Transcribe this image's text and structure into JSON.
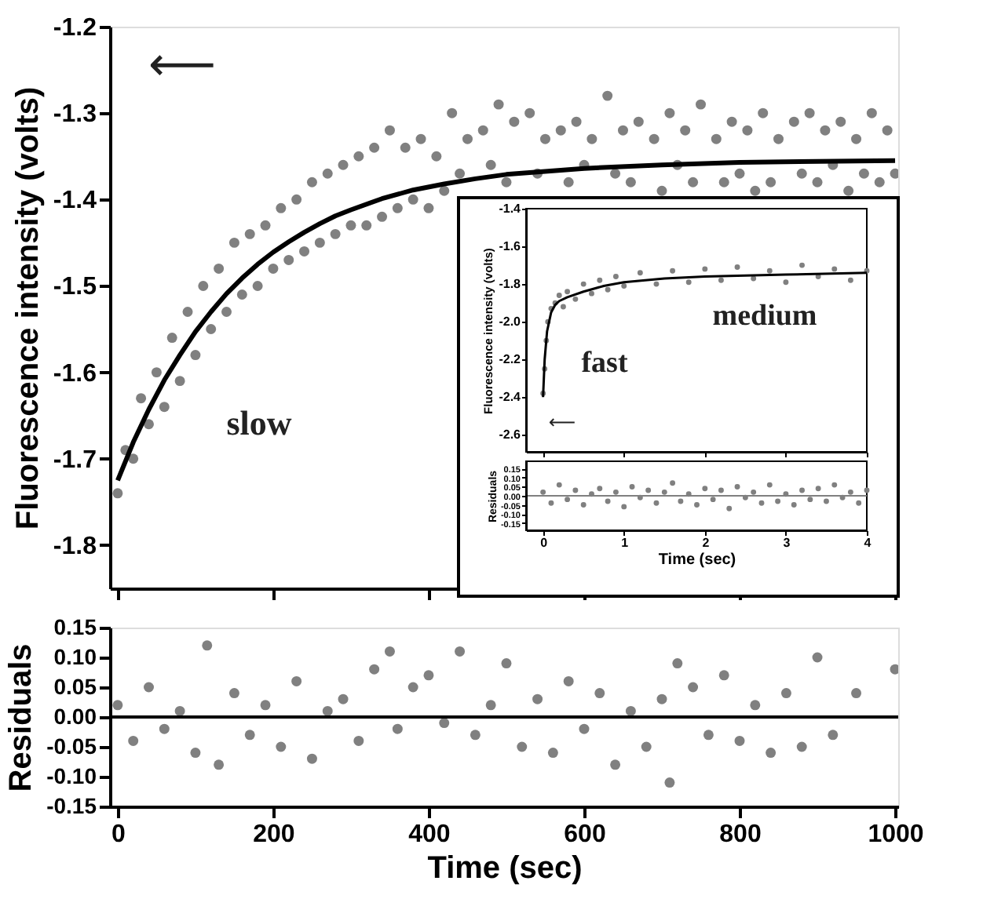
{
  "chart_data": [
    {
      "type": "scatter",
      "ylabel": "Fluorescence intensity (volts)",
      "xlim": [
        -10,
        1004
      ],
      "xticks": [
        0,
        200,
        400,
        600,
        800,
        1000
      ],
      "ylim": [
        -1.85,
        -1.2
      ],
      "yticks": [
        -1.8,
        -1.7,
        -1.6,
        -1.5,
        -1.4,
        -1.3,
        -1.2
      ],
      "tick_labels": "y",
      "series": [
        {
          "marker": "circle",
          "color": "#808080",
          "x": [
            0,
            10,
            20,
            30,
            40,
            50,
            60,
            70,
            80,
            90,
            100,
            110,
            120,
            130,
            140,
            150,
            160,
            170,
            180,
            190,
            200,
            210,
            220,
            230,
            240,
            250,
            260,
            270,
            280,
            290,
            300,
            310,
            320,
            330,
            340,
            350,
            360,
            370,
            380,
            390,
            400,
            410,
            420,
            430,
            440,
            450,
            460,
            470,
            480,
            490,
            500,
            510,
            520,
            530,
            540,
            550,
            560,
            570,
            580,
            590,
            600,
            610,
            620,
            630,
            640,
            650,
            660,
            670,
            680,
            690,
            700,
            710,
            720,
            730,
            740,
            750,
            760,
            770,
            780,
            790,
            800,
            810,
            820,
            830,
            840,
            850,
            860,
            870,
            880,
            890,
            900,
            910,
            920,
            930,
            940,
            950,
            960,
            970,
            980,
            990,
            1000
          ],
          "values": [
            -1.74,
            -1.69,
            -1.7,
            -1.63,
            -1.66,
            -1.6,
            -1.64,
            -1.56,
            -1.61,
            -1.53,
            -1.58,
            -1.5,
            -1.55,
            -1.48,
            -1.53,
            -1.45,
            -1.51,
            -1.44,
            -1.5,
            -1.43,
            -1.48,
            -1.41,
            -1.47,
            -1.4,
            -1.46,
            -1.38,
            -1.45,
            -1.37,
            -1.44,
            -1.36,
            -1.43,
            -1.35,
            -1.43,
            -1.34,
            -1.42,
            -1.32,
            -1.41,
            -1.34,
            -1.4,
            -1.33,
            -1.41,
            -1.35,
            -1.39,
            -1.3,
            -1.37,
            -1.33,
            null,
            -1.32,
            -1.36,
            -1.29,
            -1.38,
            -1.31,
            null,
            -1.3,
            -1.37,
            -1.33,
            null,
            -1.32,
            -1.38,
            -1.31,
            -1.36,
            -1.33,
            null,
            -1.28,
            -1.37,
            -1.32,
            -1.38,
            -1.31,
            null,
            -1.33,
            -1.39,
            -1.3,
            -1.36,
            -1.32,
            -1.38,
            -1.29,
            null,
            -1.33,
            -1.38,
            -1.31,
            -1.37,
            -1.32,
            -1.39,
            -1.3,
            -1.38,
            -1.33,
            null,
            -1.31,
            -1.37,
            -1.3,
            -1.38,
            -1.32,
            -1.36,
            -1.31,
            -1.39,
            -1.33,
            -1.37,
            -1.3,
            -1.38,
            -1.32,
            -1.37
          ]
        },
        {
          "type": "line",
          "marker": "none",
          "color": "#000000",
          "x": [
            0,
            20,
            40,
            60,
            80,
            100,
            120,
            140,
            160,
            180,
            200,
            220,
            240,
            260,
            280,
            300,
            340,
            380,
            420,
            460,
            500,
            600,
            700,
            800,
            900,
            1000
          ],
          "values": [
            -1.725,
            -1.681,
            -1.643,
            -1.609,
            -1.58,
            -1.553,
            -1.53,
            -1.509,
            -1.491,
            -1.475,
            -1.461,
            -1.449,
            -1.438,
            -1.428,
            -1.419,
            -1.412,
            -1.399,
            -1.389,
            -1.382,
            -1.376,
            -1.371,
            -1.364,
            -1.36,
            -1.357,
            -1.356,
            -1.355
          ]
        }
      ],
      "annotations": [
        "slow",
        "⟵"
      ]
    },
    {
      "type": "scatter",
      "xlabel": "Time (sec)",
      "ylabel": "Residuals",
      "xlim": [
        -10,
        1004
      ],
      "xticks": [
        0,
        200,
        400,
        600,
        800,
        1000
      ],
      "ylim": [
        -0.15,
        0.15
      ],
      "yticks": [
        {
          "value": 0.15,
          "label": "0.15"
        },
        {
          "value": 0.1,
          "label": "0.10"
        },
        {
          "value": 0.05,
          "label": "0.05"
        },
        {
          "value": 0,
          "label": "0.00"
        },
        {
          "value": -0.05,
          "label": "-0.05"
        },
        {
          "value": -0.1,
          "label": "-0.10"
        },
        {
          "value": -0.15,
          "label": "-0.15"
        }
      ],
      "series": [
        {
          "marker": "circle",
          "color": "#808080",
          "x": [
            0,
            20,
            40,
            60,
            80,
            100,
            115,
            130,
            150,
            170,
            190,
            210,
            230,
            250,
            270,
            290,
            310,
            330,
            350,
            360,
            380,
            400,
            420,
            440,
            460,
            480,
            500,
            520,
            540,
            560,
            580,
            600,
            620,
            640,
            660,
            680,
            700,
            720,
            710,
            740,
            760,
            780,
            800,
            820,
            840,
            860,
            880,
            900,
            920,
            950,
            1000
          ],
          "values": [
            0.02,
            -0.04,
            0.05,
            -0.02,
            0.01,
            -0.06,
            0.12,
            -0.08,
            0.04,
            -0.03,
            0.02,
            -0.05,
            0.06,
            -0.07,
            0.01,
            0.03,
            -0.04,
            0.08,
            0.11,
            -0.02,
            0.05,
            0.07,
            -0.01,
            0.11,
            -0.03,
            0.02,
            0.09,
            -0.05,
            0.03,
            -0.06,
            0.06,
            -0.02,
            0.04,
            -0.08,
            0.01,
            -0.05,
            0.03,
            0.09,
            -0.11,
            0.05,
            -0.03,
            0.07,
            -0.04,
            0.02,
            -0.06,
            0.04,
            -0.05,
            0.1,
            -0.03,
            0.04,
            0.08
          ]
        }
      ],
      "ref_lines": [
        {
          "axis": "y",
          "value": 0,
          "color": "#000000"
        }
      ]
    },
    {
      "type": "scatter",
      "ylabel": "Fluorescence intensity (volts)",
      "xlim": [
        -0.21,
        4.0
      ],
      "xticks": [
        0,
        1,
        2,
        3,
        4
      ],
      "ylim": [
        -2.69,
        -1.4
      ],
      "yticks": [
        -2.6,
        -2.4,
        -2.2,
        {
          "value": -2,
          "label": "-2.0"
        },
        -1.8,
        -1.6,
        -1.4
      ],
      "tick_labels": "y",
      "series": [
        {
          "marker": "circle",
          "color": "#808080",
          "x": [
            0,
            0.02,
            0.04,
            0.06,
            0.08,
            0.1,
            0.15,
            0.2,
            0.25,
            0.3,
            0.4,
            0.5,
            0.6,
            0.7,
            0.8,
            0.9,
            1.0,
            1.2,
            1.4,
            1.6,
            1.8,
            2.0,
            2.2,
            2.4,
            2.6,
            2.8,
            3.0,
            3.2,
            3.4,
            3.6,
            3.8,
            4.0
          ],
          "values": [
            -2.38,
            -2.25,
            -2.1,
            -2.0,
            null,
            -1.93,
            -1.9,
            -1.86,
            -1.92,
            -1.84,
            -1.88,
            -1.8,
            -1.85,
            -1.78,
            -1.83,
            -1.76,
            -1.81,
            -1.74,
            -1.8,
            -1.73,
            -1.79,
            -1.72,
            -1.78,
            -1.71,
            -1.77,
            -1.73,
            -1.79,
            -1.7,
            -1.76,
            -1.72,
            -1.78,
            -1.73
          ]
        },
        {
          "type": "line",
          "marker": "none",
          "color": "#000000",
          "x": [
            0,
            0.02,
            0.05,
            0.1,
            0.15,
            0.2,
            0.3,
            0.5,
            0.75,
            1,
            1.5,
            2,
            3,
            4
          ],
          "values": [
            -2.4,
            -2.2,
            -2.05,
            -1.95,
            -1.91,
            -1.89,
            -1.87,
            -1.84,
            -1.81,
            -1.79,
            -1.77,
            -1.76,
            -1.75,
            -1.74
          ]
        }
      ],
      "annotations": [
        "fast",
        "medium",
        "⟵"
      ]
    },
    {
      "type": "scatter",
      "xlabel": "Time (sec)",
      "ylabel": "Residuals",
      "xlim": [
        -0.21,
        4.0
      ],
      "xticks": [
        0,
        1,
        2,
        3,
        4
      ],
      "ylim": [
        -0.19,
        0.19
      ],
      "yticks": [
        {
          "value": 0.15,
          "label": "0.15"
        },
        {
          "value": 0.1,
          "label": "0.10"
        },
        {
          "value": 0.05,
          "label": "0.05"
        },
        {
          "value": 0,
          "label": "0.00"
        },
        {
          "value": -0.05,
          "label": "-0.05"
        },
        {
          "value": -0.1,
          "label": "-0.10"
        },
        {
          "value": -0.15,
          "label": "-0.15"
        }
      ],
      "series": [
        {
          "marker": "circle",
          "color": "#808080",
          "x": [
            0,
            0.1,
            0.2,
            0.3,
            0.4,
            0.5,
            0.6,
            0.7,
            0.8,
            0.9,
            1.0,
            1.1,
            1.2,
            1.3,
            1.4,
            1.5,
            1.6,
            1.7,
            1.8,
            1.9,
            2.0,
            2.1,
            2.2,
            2.3,
            2.4,
            2.5,
            2.6,
            2.7,
            2.8,
            2.9,
            3.0,
            3.1,
            3.2,
            3.3,
            3.4,
            3.5,
            3.6,
            3.7,
            3.8,
            3.9,
            4.0
          ],
          "values": [
            0.02,
            -0.04,
            0.06,
            -0.02,
            0.03,
            -0.05,
            0.01,
            0.04,
            -0.03,
            0.02,
            -0.06,
            0.05,
            -0.01,
            0.03,
            -0.04,
            0.02,
            0.07,
            -0.03,
            0.01,
            -0.05,
            0.04,
            -0.02,
            0.03,
            -0.07,
            0.05,
            -0.01,
            0.02,
            -0.04,
            0.06,
            -0.03,
            0.01,
            -0.05,
            0.03,
            -0.02,
            0.04,
            -0.03,
            0.06,
            -0.01,
            0.02,
            -0.04,
            0.03
          ]
        }
      ],
      "ref_lines": [
        {
          "axis": "y",
          "value": 0,
          "color": "#808080"
        }
      ]
    }
  ]
}
